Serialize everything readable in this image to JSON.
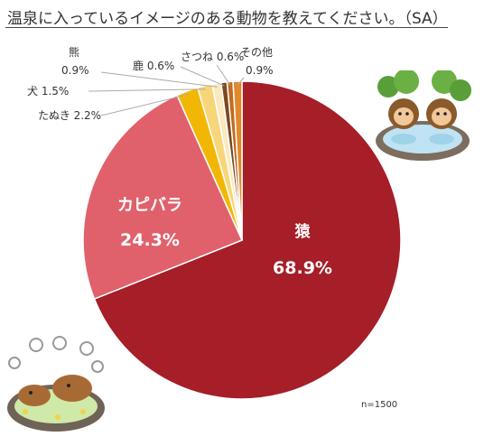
{
  "title": "温泉に入っているイメージのある動物を教えてください。（SA）",
  "sample_size": "n=1500",
  "chart_data": {
    "type": "pie",
    "title": "温泉に入っているイメージのある動物を教えてください。（SA）",
    "slices": [
      {
        "label": "猿",
        "value": 68.9,
        "value_text": "68.9%",
        "color": "#a51e28"
      },
      {
        "label": "カピバラ",
        "value": 24.3,
        "value_text": "24.3%",
        "color": "#e0616b"
      },
      {
        "label": "たぬき",
        "value": 2.2,
        "value_text": "2.2%",
        "color": "#f2b705"
      },
      {
        "label": "犬",
        "value": 1.5,
        "value_text": "1.5%",
        "color": "#f7d67a"
      },
      {
        "label": "熊",
        "value": 0.9,
        "value_text": "0.9%",
        "color": "#fbe9bf"
      },
      {
        "label": "鹿",
        "value": 0.6,
        "value_text": "0.6%",
        "color": "#7a4a1e"
      },
      {
        "label": "さつね",
        "value": 0.6,
        "value_text": "0.6%",
        "color": "#c46a1f"
      },
      {
        "label": "その他",
        "value": 0.9,
        "value_text": "0.9%",
        "color": "#e08a2c"
      }
    ]
  },
  "illustrations": [
    {
      "name": "monkeys-in-hot-spring-illustration"
    },
    {
      "name": "capybaras-in-hot-spring-illustration"
    }
  ]
}
